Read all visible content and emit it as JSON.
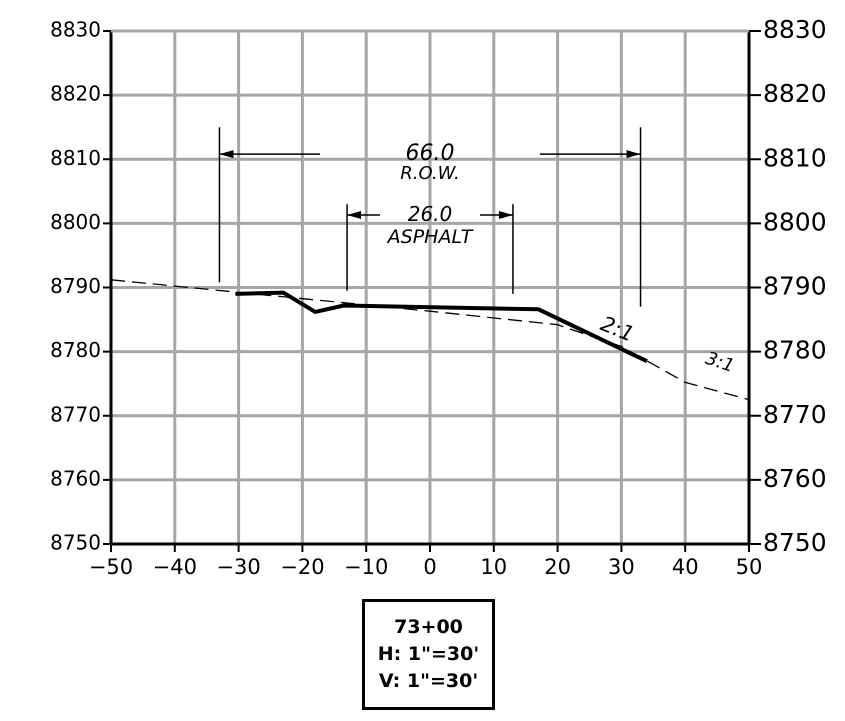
{
  "chart_data": {
    "type": "line",
    "x_ticks": [
      -50,
      -40,
      -30,
      -20,
      -10,
      0,
      10,
      20,
      30,
      40,
      50
    ],
    "y_ticks": [
      8750,
      8760,
      8770,
      8780,
      8790,
      8800,
      8810,
      8820,
      8830
    ],
    "xlim": [
      -50,
      50
    ],
    "ylim": [
      8750,
      8830
    ],
    "grid": true,
    "series": [
      {
        "role": "proposed-section",
        "style": "solid-thick",
        "points": [
          [
            -30.5,
            8789.0
          ],
          [
            -23,
            8789.2
          ],
          [
            -18,
            8786.2
          ],
          [
            -13.5,
            8787.2
          ],
          [
            17,
            8786.6
          ],
          [
            34,
            8778.5
          ]
        ]
      },
      {
        "role": "existing-ground",
        "style": "dashed",
        "points": [
          [
            -50,
            8791.2
          ],
          [
            0,
            8786.3
          ],
          [
            20,
            8784.2
          ],
          [
            30,
            8780.8
          ],
          [
            40,
            8775.2
          ],
          [
            50,
            8772.5
          ]
        ]
      }
    ],
    "dimensions": [
      {
        "value": "66.0",
        "label": "R.O.W.",
        "from": -33,
        "to": 33,
        "y": 8810.8
      },
      {
        "value": "26.0",
        "label": "ASPHALT",
        "from": -13,
        "to": 13,
        "y": 8801.3
      }
    ],
    "annotations": [
      {
        "text": "2:1",
        "x": 26.5,
        "y": 8783.5
      },
      {
        "text": "3:1",
        "x": 43,
        "y": 8778.2
      }
    ]
  },
  "station_box": {
    "station": "73+00",
    "h_scale": "H: 1\"=30'",
    "v_scale": "V: 1\"=30'"
  }
}
